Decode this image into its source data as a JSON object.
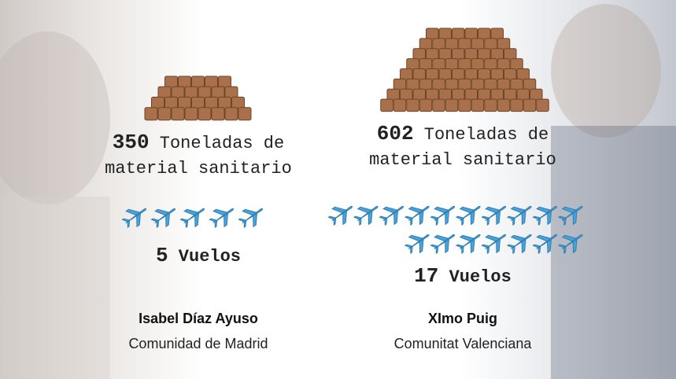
{
  "panels": [
    {
      "tons": 350,
      "tons_label": "Toneladas de",
      "material": "material sanitario",
      "flights": 5,
      "flights_label": "Vuelos",
      "name": "Isabel Díaz Ayuso",
      "region": "Comunidad de Madrid"
    },
    {
      "tons": 602,
      "tons_label": "Toneladas de",
      "material": "material sanitario",
      "flights": 17,
      "flights_label": "Vuelos",
      "name": "XImo Puig",
      "region": "Comunitat Valenciana"
    }
  ]
}
